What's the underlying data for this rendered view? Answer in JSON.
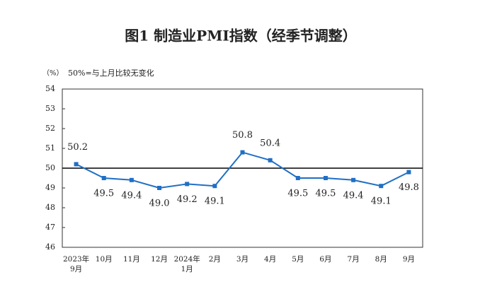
{
  "chart_data": {
    "type": "line",
    "title": "图1  制造业PMI指数（经季节调整）",
    "y_unit": "（%）",
    "annotation": "50%=与上月比较无变化",
    "categories": [
      "2023年\n9月",
      "10月",
      "11月",
      "12月",
      "2024年\n1月",
      "2月",
      "3月",
      "4月",
      "5月",
      "6月",
      "7月",
      "8月",
      "9月"
    ],
    "values": [
      50.2,
      49.5,
      49.4,
      49.0,
      49.2,
      49.1,
      50.8,
      50.4,
      49.5,
      49.5,
      49.4,
      49.1,
      49.8
    ],
    "value_labels": [
      "50.2",
      "49.5",
      "49.4",
      "49.0",
      "49.2",
      "49.1",
      "50.8",
      "50.4",
      "49.5",
      "49.5",
      "49.4",
      "49.1",
      "49.8"
    ],
    "color": "#1f6fc5",
    "reference_line": 50,
    "ylim": [
      46,
      54
    ],
    "yticks": [
      46,
      47,
      48,
      49,
      50,
      51,
      52,
      53,
      54
    ]
  }
}
